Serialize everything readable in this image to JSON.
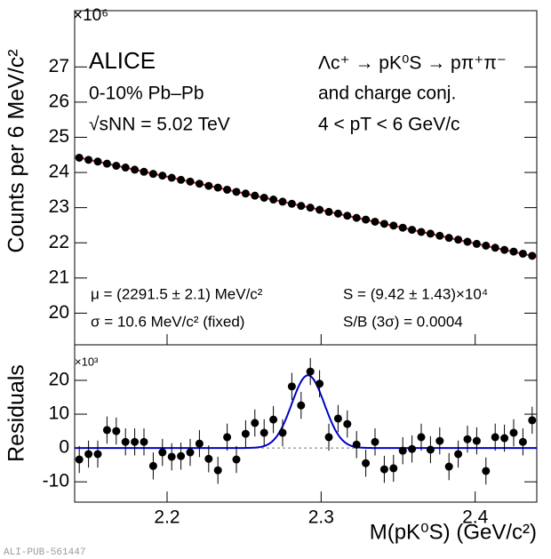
{
  "chart_data": [
    {
      "type": "scatter",
      "ylabel": "Counts per 6 MeV/c²",
      "exponent": "×10⁶",
      "annotations": [
        "ALICE",
        "0-10% Pb–Pb",
        "√sNN = 5.02 TeV",
        "Λc⁺ → pK⁰S → pπ⁺π⁻",
        "and charge conj.",
        "4 < pT < 6 GeV/c",
        "μ = (2291.5 ± 2.1) MeV/c²",
        "S = (9.42 ± 1.43)×10⁴",
        "σ = 10.6 MeV/c² (fixed)",
        "S/B (3σ) = 0.0004"
      ],
      "x": [
        2.143,
        2.149,
        2.155,
        2.161,
        2.167,
        2.173,
        2.179,
        2.185,
        2.191,
        2.197,
        2.203,
        2.209,
        2.215,
        2.221,
        2.227,
        2.233,
        2.239,
        2.245,
        2.251,
        2.257,
        2.263,
        2.269,
        2.275,
        2.281,
        2.287,
        2.293,
        2.299,
        2.305,
        2.311,
        2.317,
        2.323,
        2.329,
        2.335,
        2.341,
        2.347,
        2.353,
        2.359,
        2.365,
        2.371,
        2.377,
        2.383,
        2.389,
        2.395,
        2.401,
        2.407,
        2.413,
        2.419,
        2.425,
        2.431,
        2.437
      ],
      "values": [
        24.42,
        24.36,
        24.31,
        24.25,
        24.19,
        24.14,
        24.08,
        24.02,
        23.96,
        23.91,
        23.85,
        23.79,
        23.74,
        23.68,
        23.62,
        23.57,
        23.51,
        23.45,
        23.4,
        23.34,
        23.28,
        23.23,
        23.17,
        23.11,
        23.05,
        23.0,
        22.94,
        22.88,
        22.83,
        22.77,
        22.71,
        22.66,
        22.6,
        22.54,
        22.49,
        22.43,
        22.37,
        22.31,
        22.26,
        22.2,
        22.14,
        22.09,
        22.03,
        21.97,
        21.92,
        21.86,
        21.8,
        21.75,
        21.69,
        21.63
      ],
      "fit": {
        "x": [
          2.14,
          2.44
        ],
        "y": [
          24.45,
          21.6
        ]
      },
      "color": "#000000",
      "fit_color": "#cc2222",
      "xlim": [
        2.14,
        2.44
      ],
      "ylim": [
        19.1,
        28.6
      ],
      "yticks": [
        20,
        21,
        22,
        23,
        24,
        25,
        26,
        27
      ]
    },
    {
      "type": "residuals",
      "ylabel": "Residuals",
      "exponent": "×10³",
      "xlabel": "M(pK⁰S) (GeV/c²)",
      "values": [
        -3.4,
        -1.8,
        -1.8,
        5.3,
        5,
        1.8,
        1.8,
        1.8,
        -5.3,
        -1.3,
        -2.6,
        -2.4,
        -1.3,
        1.3,
        -3.2,
        -6.6,
        3.2,
        -3.4,
        4.2,
        7.4,
        4.5,
        8.4,
        4.5,
        18.2,
        12.6,
        22.6,
        19,
        3.2,
        8.7,
        7.1,
        1,
        -4.5,
        1.8,
        -6.3,
        -6,
        -0.8,
        -0.3,
        3.2,
        -0.5,
        2.1,
        -5.5,
        -1.8,
        2.6,
        2.1,
        -6.8,
        3.2,
        2.9,
        4.5,
        1.8,
        8.2
      ],
      "errors": [
        4,
        4,
        4,
        4,
        4,
        4,
        4,
        4,
        4,
        4,
        4,
        4,
        4,
        4,
        4,
        4,
        4,
        4,
        4,
        4,
        4,
        4,
        4,
        4,
        4,
        4,
        4,
        4,
        4,
        4,
        4,
        4,
        4,
        4,
        4,
        4,
        4,
        4,
        4,
        4,
        4,
        4,
        4,
        4,
        4,
        4,
        4,
        4,
        4,
        4
      ],
      "fit": {
        "mean": 2.2915,
        "sigma": 0.0106,
        "amplitude": 21.5
      },
      "color": "#000000",
      "fit_color": "#0000cc",
      "xlim": [
        2.14,
        2.44
      ],
      "ylim": [
        -16,
        30.5
      ],
      "xticks": [
        2.2,
        2.3,
        2.4
      ],
      "yticks": [
        -10,
        0,
        10,
        20
      ]
    }
  ],
  "watermark": "ALI-PUB-561447"
}
